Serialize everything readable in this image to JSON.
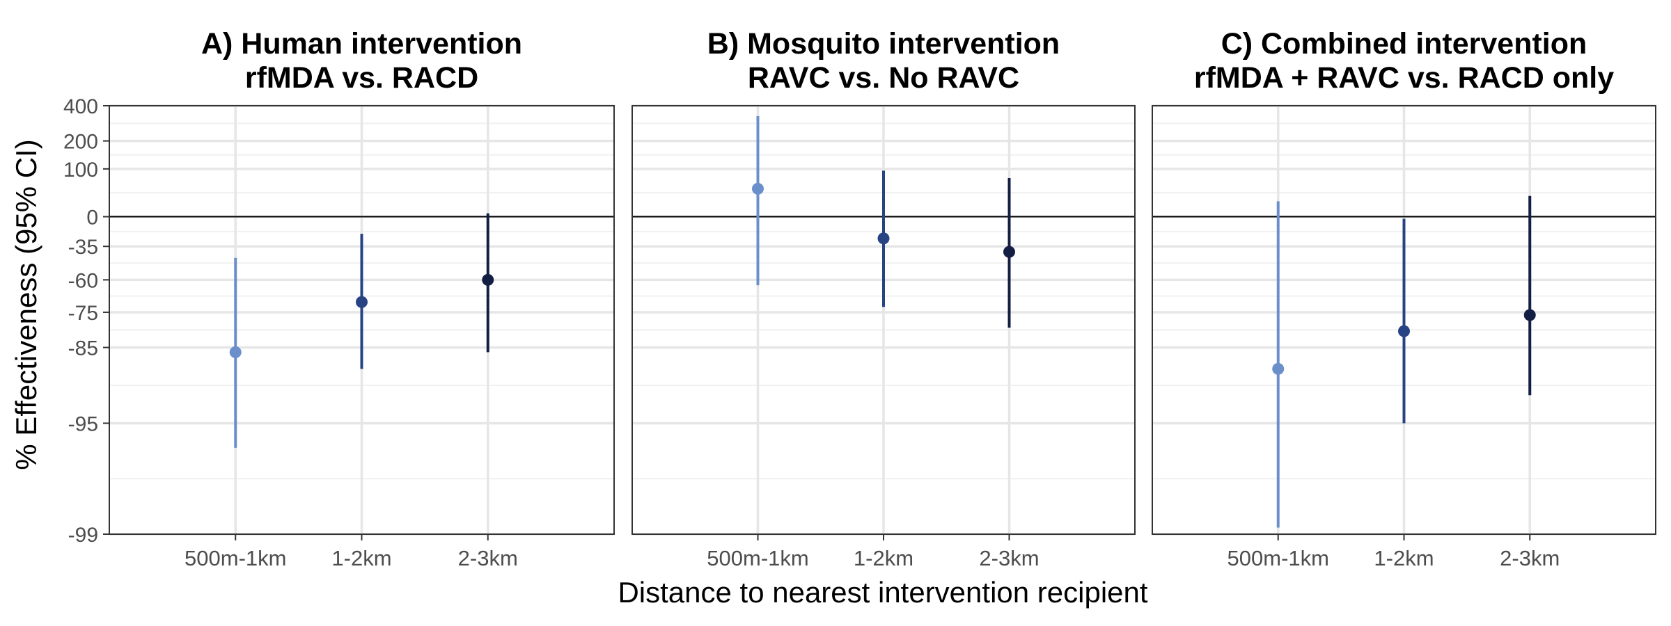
{
  "chart_data": {
    "type": "scatter",
    "geometry": "point-range",
    "xlabel": "Distance to nearest intervention recipient",
    "ylabel": "% Effectiveness (95% CI)",
    "categories": [
      "500m-1km",
      "1-2km",
      "2-3km"
    ],
    "y_scale": "log-ratio",
    "yticks": [
      400,
      200,
      100,
      0,
      -35,
      -60,
      -75,
      -85,
      -95,
      -99
    ],
    "ylim": [
      -99,
      400
    ],
    "reference_line": 0,
    "grid": true,
    "legend": "none",
    "category_colors": [
      "#6a8fcb",
      "#274383",
      "#131e44"
    ],
    "panels": [
      {
        "title_line1": "A) Human intervention",
        "title_line2": "rfMDA vs. RACD",
        "points": [
          {
            "category": "500m-1km",
            "estimate": -86,
            "lower": -96.5,
            "upper": -45
          },
          {
            "category": "1-2km",
            "estimate": -71,
            "lower": -89,
            "upper": -22
          },
          {
            "category": "2-3km",
            "estimate": -60,
            "lower": -86,
            "upper": 5
          }
        ]
      },
      {
        "title_line1": "B) Mosquito intervention",
        "title_line2": "RAVC vs. No RAVC",
        "points": [
          {
            "category": "500m-1km",
            "estimate": 50,
            "lower": -63,
            "upper": 330
          },
          {
            "category": "1-2km",
            "estimate": -27,
            "lower": -73,
            "upper": 95
          },
          {
            "category": "2-3km",
            "estimate": -40,
            "lower": -80,
            "upper": 75
          }
        ]
      },
      {
        "title_line1": "C) Combined intervention",
        "title_line2": "rfMDA + RAVC vs. RACD only",
        "points": [
          {
            "category": "500m-1km",
            "estimate": -89,
            "lower": -98.9,
            "upper": 25
          },
          {
            "category": "1-2km",
            "estimate": -81,
            "lower": -95,
            "upper": -3
          },
          {
            "category": "2-3km",
            "estimate": -76,
            "lower": -92.5,
            "upper": 35
          }
        ]
      }
    ]
  }
}
